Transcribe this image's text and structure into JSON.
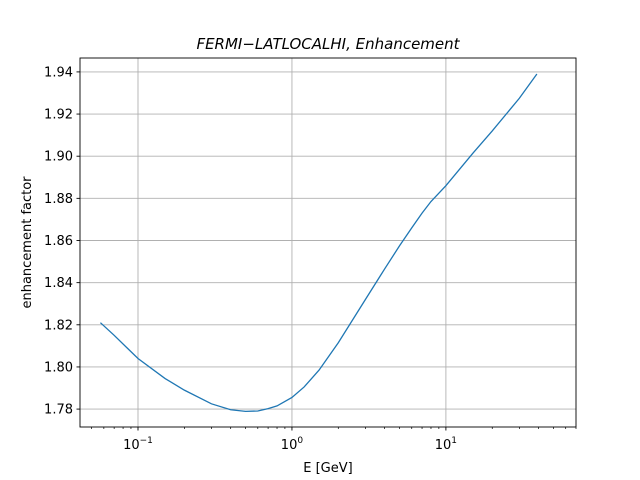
{
  "chart_data": {
    "type": "line",
    "title": "FERMI−LATLOCALHI, Enhancement",
    "xlabel": "E [GeV]",
    "ylabel": "enhancement factor",
    "x_scale": "log",
    "xlim": [
      0.042,
      70
    ],
    "ylim": [
      1.7715,
      1.9466
    ],
    "x_ticks": [
      {
        "value": 0.1,
        "base": "10",
        "exp": "−1"
      },
      {
        "value": 1,
        "base": "10",
        "exp": "0"
      },
      {
        "value": 10,
        "base": "10",
        "exp": "1"
      }
    ],
    "y_ticks": [
      {
        "value": 1.78,
        "label": "1.78"
      },
      {
        "value": 1.8,
        "label": "1.80"
      },
      {
        "value": 1.82,
        "label": "1.82"
      },
      {
        "value": 1.84,
        "label": "1.84"
      },
      {
        "value": 1.86,
        "label": "1.86"
      },
      {
        "value": 1.88,
        "label": "1.88"
      },
      {
        "value": 1.9,
        "label": "1.90"
      },
      {
        "value": 1.92,
        "label": "1.92"
      },
      {
        "value": 1.94,
        "label": "1.94"
      }
    ],
    "grid": true,
    "series": [
      {
        "color": "#1f77b4",
        "x": [
          0.057,
          0.07,
          0.1,
          0.15,
          0.2,
          0.3,
          0.4,
          0.5,
          0.6,
          0.7,
          0.8,
          1.0,
          1.2,
          1.5,
          2.0,
          3.0,
          4.0,
          5.0,
          6.0,
          7.0,
          8.0,
          10.0,
          15.0,
          20.0,
          30.0,
          39.0
        ],
        "y": [
          1.821,
          1.815,
          1.804,
          1.7945,
          1.789,
          1.7825,
          1.7797,
          1.7789,
          1.7791,
          1.7802,
          1.7815,
          1.7855,
          1.7905,
          1.7985,
          1.8115,
          1.832,
          1.8465,
          1.8575,
          1.866,
          1.873,
          1.8785,
          1.886,
          1.9015,
          1.912,
          1.9275,
          1.939
        ]
      }
    ]
  }
}
